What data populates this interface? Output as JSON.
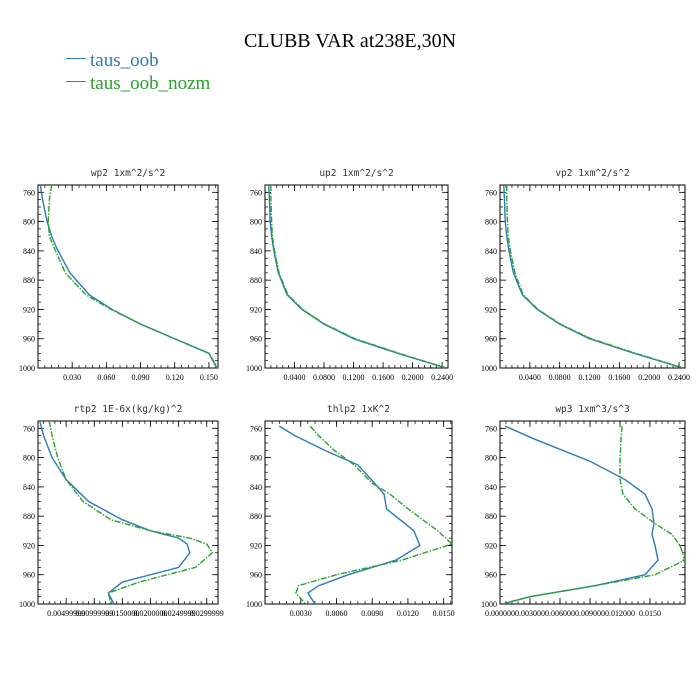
{
  "title": "CLUBB VAR at238E,30N",
  "legend": [
    {
      "name": "taus_oob",
      "color": "#2b7bba"
    },
    {
      "name": "taus_oob_nozm",
      "color": "#2ca02c"
    }
  ],
  "chart_data": [
    {
      "type": "line",
      "title": "wp2   1xm^2/s^2",
      "ylim": [
        1000,
        750
      ],
      "yticks": [
        760,
        800,
        840,
        880,
        920,
        960,
        1000
      ],
      "yticklabels": [
        "760",
        "800",
        "840",
        "880",
        "920",
        "960",
        "1000"
      ],
      "xlim": [
        0.0,
        0.158
      ],
      "xticks": [
        0.03,
        0.06,
        0.09,
        0.12,
        0.15
      ],
      "xticklabels": [
        "0.030",
        "0.060",
        "0.090",
        "0.120",
        "0.150"
      ],
      "series": [
        {
          "name": "taus_oob",
          "x": [
            0.002,
            0.004,
            0.008,
            0.012,
            0.016,
            0.028,
            0.045,
            0.065,
            0.09,
            0.12,
            0.15,
            0.157
          ],
          "y": [
            750,
            770,
            800,
            820,
            835,
            870,
            900,
            920,
            940,
            960,
            980,
            1000
          ]
        },
        {
          "name": "taus_oob_nozm",
          "x": [
            0.012,
            0.01,
            0.009,
            0.01,
            0.014,
            0.024,
            0.042,
            0.064,
            0.09,
            0.12,
            0.15,
            0.158
          ],
          "y": [
            750,
            770,
            800,
            820,
            835,
            870,
            900,
            920,
            940,
            960,
            980,
            1000
          ]
        }
      ]
    },
    {
      "type": "line",
      "title": "up2   1xm^2/s^2",
      "ylim": [
        1000,
        750
      ],
      "yticks": [
        760,
        800,
        840,
        880,
        920,
        960,
        1000
      ],
      "yticklabels": [
        "760",
        "800",
        "840",
        "880",
        "920",
        "960",
        "1000"
      ],
      "xlim": [
        0.0,
        0.248
      ],
      "xticks": [
        0.04,
        0.08,
        0.12,
        0.16,
        0.2,
        0.24
      ],
      "xticklabels": [
        "0.0400",
        "0.0800",
        "0.1200",
        "0.1600",
        "0.2000",
        "0.2400"
      ],
      "series": [
        {
          "name": "taus_oob",
          "x": [
            0.005,
            0.006,
            0.007,
            0.009,
            0.012,
            0.018,
            0.03,
            0.05,
            0.08,
            0.12,
            0.18,
            0.245
          ],
          "y": [
            750,
            770,
            800,
            820,
            840,
            870,
            900,
            920,
            940,
            960,
            980,
            1000
          ]
        },
        {
          "name": "taus_oob_nozm",
          "x": [
            0.008,
            0.008,
            0.009,
            0.01,
            0.013,
            0.019,
            0.031,
            0.051,
            0.081,
            0.122,
            0.182,
            0.246
          ],
          "y": [
            750,
            770,
            800,
            820,
            840,
            870,
            900,
            920,
            940,
            960,
            980,
            1000
          ]
        }
      ]
    },
    {
      "type": "line",
      "title": "vp2   1xm^2/s^2",
      "ylim": [
        1000,
        750
      ],
      "yticks": [
        760,
        800,
        840,
        880,
        920,
        960,
        1000
      ],
      "yticklabels": [
        "760",
        "800",
        "840",
        "880",
        "920",
        "960",
        "1000"
      ],
      "xlim": [
        0.0,
        0.248
      ],
      "xticks": [
        0.04,
        0.08,
        0.12,
        0.16,
        0.2,
        0.24
      ],
      "xticklabels": [
        "0.0400",
        "0.0800",
        "0.1200",
        "0.1600",
        "0.2000",
        "0.2400"
      ],
      "series": [
        {
          "name": "taus_oob",
          "x": [
            0.005,
            0.006,
            0.007,
            0.009,
            0.012,
            0.018,
            0.03,
            0.05,
            0.08,
            0.12,
            0.18,
            0.245
          ],
          "y": [
            750,
            770,
            800,
            820,
            840,
            870,
            900,
            920,
            940,
            960,
            980,
            1000
          ]
        },
        {
          "name": "taus_oob_nozm",
          "x": [
            0.009,
            0.009,
            0.01,
            0.011,
            0.014,
            0.02,
            0.031,
            0.051,
            0.081,
            0.122,
            0.182,
            0.246
          ],
          "y": [
            750,
            770,
            800,
            820,
            840,
            870,
            900,
            920,
            940,
            960,
            980,
            1000
          ]
        }
      ]
    },
    {
      "type": "line",
      "title": "rtp2   1E-6x(kg/kg)^2",
      "ylim": [
        1000,
        750
      ],
      "yticks": [
        760,
        800,
        840,
        880,
        920,
        960,
        1000
      ],
      "yticklabels": [
        "760",
        "800",
        "840",
        "880",
        "920",
        "960",
        "1000"
      ],
      "xlim": [
        0.0,
        0.032
      ],
      "xticks": [
        0.005,
        0.01,
        0.015,
        0.02,
        0.025,
        0.03
      ],
      "xticklabels": [
        "0.00499999",
        "0.00999999",
        "0.0150000",
        "0.0200000",
        "0.0249999",
        "0.0299999"
      ],
      "series": [
        {
          "name": "taus_oob",
          "x": [
            0.0003,
            0.001,
            0.0025,
            0.005,
            0.009,
            0.015,
            0.02,
            0.025,
            0.0265,
            0.027,
            0.025,
            0.015,
            0.0125,
            0.0135
          ],
          "y": [
            750,
            770,
            800,
            830,
            860,
            885,
            900,
            910,
            918,
            930,
            950,
            970,
            985,
            1000
          ]
        },
        {
          "name": "taus_oob_nozm",
          "x": [
            0.002,
            0.0025,
            0.0035,
            0.005,
            0.008,
            0.013,
            0.02,
            0.027,
            0.03,
            0.031,
            0.028,
            0.018,
            0.0125,
            0.013
          ],
          "y": [
            750,
            770,
            800,
            830,
            860,
            885,
            900,
            910,
            918,
            930,
            950,
            970,
            985,
            1000
          ]
        }
      ]
    },
    {
      "type": "line",
      "title": "thlp2   1xK^2",
      "ylim": [
        1000,
        750
      ],
      "yticks": [
        760,
        800,
        840,
        880,
        920,
        960,
        1000
      ],
      "yticklabels": [
        "760",
        "800",
        "840",
        "880",
        "920",
        "960",
        "1000"
      ],
      "xlim": [
        0.0,
        0.0157
      ],
      "xticks": [
        0.003,
        0.006,
        0.009,
        0.012,
        0.015
      ],
      "xticklabels": [
        "0.0030",
        "0.0060",
        "0.0090",
        "0.0120",
        "0.0150"
      ],
      "series": [
        {
          "name": "taus_oob",
          "x": [
            0.0012,
            0.0025,
            0.005,
            0.0078,
            0.0092,
            0.01,
            0.0102,
            0.0125,
            0.013,
            0.011,
            0.007,
            0.0045,
            0.0036,
            0.0042
          ],
          "y": [
            757,
            770,
            790,
            810,
            835,
            850,
            870,
            900,
            920,
            940,
            960,
            975,
            985,
            1000
          ]
        },
        {
          "name": "taus_oob_nozm",
          "x": [
            0.0038,
            0.0045,
            0.0058,
            0.0075,
            0.009,
            0.0105,
            0.012,
            0.0145,
            0.0157,
            0.0115,
            0.006,
            0.0028,
            0.0026,
            0.0034
          ],
          "y": [
            757,
            770,
            790,
            810,
            835,
            850,
            870,
            900,
            918,
            940,
            960,
            975,
            985,
            1000
          ]
        }
      ]
    },
    {
      "type": "line",
      "title": "wp3   1xm^3/s^3",
      "ylim": [
        1000,
        750
      ],
      "yticks": [
        760,
        800,
        840,
        880,
        920,
        960,
        1000
      ],
      "yticklabels": [
        "760",
        "800",
        "840",
        "880",
        "920",
        "960",
        "1000"
      ],
      "xlim": [
        0.0,
        0.0185
      ],
      "xticks": [
        0.0,
        0.003,
        0.006,
        0.009,
        0.012,
        0.015
      ],
      "xticklabels": [
        "0.000000",
        "0.003000",
        "0.006000",
        "0.009000",
        "0.012000",
        "0.0150"
      ],
      "series": [
        {
          "name": "taus_oob",
          "x": [
            0.0005,
            0.0035,
            0.009,
            0.0125,
            0.0145,
            0.0152,
            0.0154,
            0.0152,
            0.0155,
            0.0158,
            0.0145,
            0.0095,
            0.003,
            0.0002
          ],
          "y": [
            757,
            775,
            805,
            830,
            850,
            870,
            890,
            905,
            920,
            940,
            960,
            975,
            990,
            1000
          ]
        },
        {
          "name": "taus_oob_nozm",
          "x": [
            0.0122,
            0.0121,
            0.012,
            0.012,
            0.0123,
            0.0135,
            0.0155,
            0.0172,
            0.018,
            0.0185,
            0.0155,
            0.0095,
            0.003,
            0.0002
          ],
          "y": [
            757,
            775,
            805,
            830,
            850,
            870,
            890,
            905,
            920,
            940,
            960,
            975,
            990,
            1000
          ]
        }
      ]
    }
  ]
}
